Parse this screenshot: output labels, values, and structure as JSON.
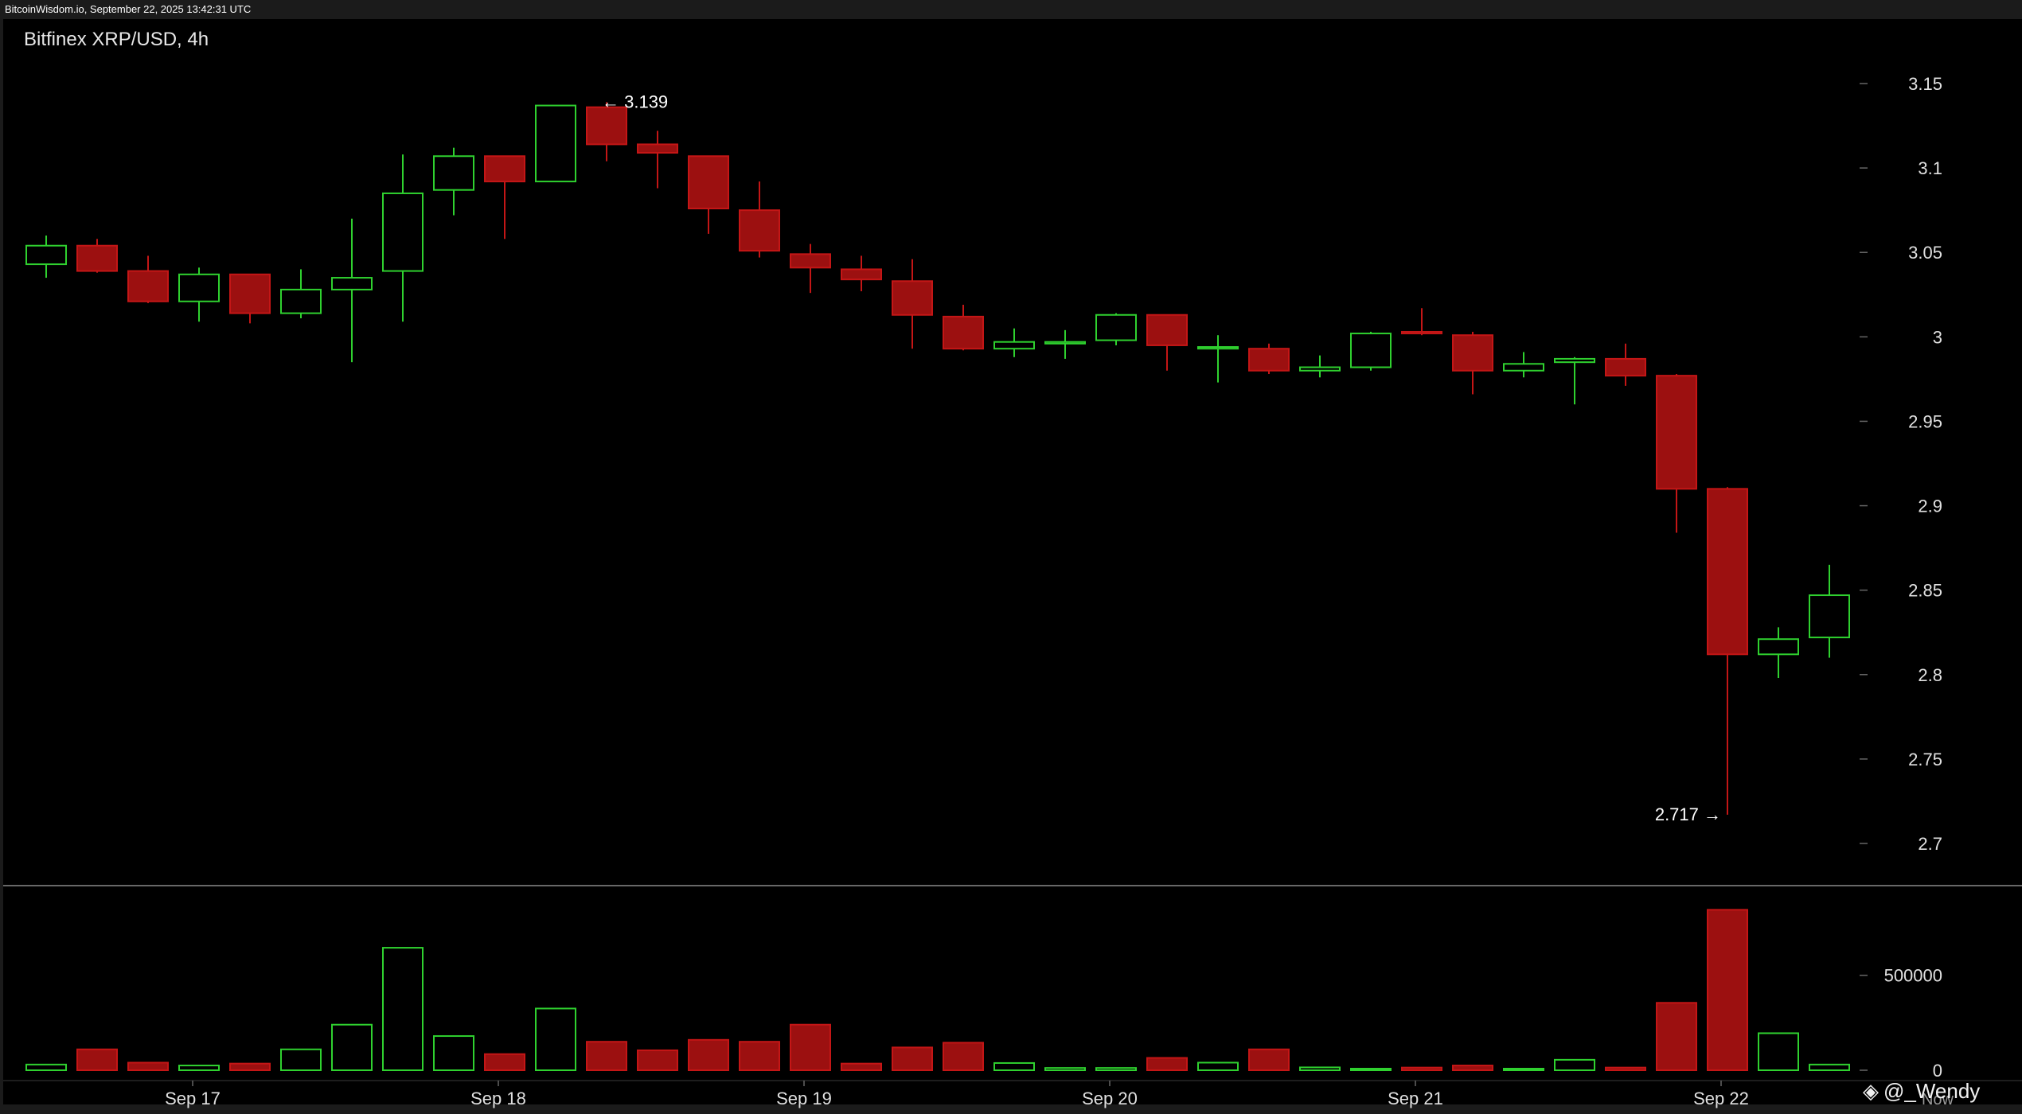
{
  "header": {
    "timestamp": "BitcoinWisdom.io, September 22, 2025 13:42:31 UTC"
  },
  "watermark": {
    "text": "@_Wendy",
    "icon": "binance-square-icon"
  },
  "colors": {
    "background": "#000000",
    "frame": "#1b1b1b",
    "up": "#2fd12f",
    "down": "#c41616",
    "down_fill": "#9c1010",
    "text": "#e0e0e0",
    "separator": "#8a8a8a"
  },
  "chart_data": {
    "type": "candlestick",
    "title": "Bitfinex XRP/USD, 4h",
    "exchange": "Bitfinex",
    "pair": "XRP/USD",
    "interval": "4h",
    "x_tick_labels": [
      {
        "label": "Sep 17",
        "index": 3
      },
      {
        "label": "Sep 18",
        "index": 9
      },
      {
        "label": "Sep 19",
        "index": 15
      },
      {
        "label": "Sep 20",
        "index": 21
      },
      {
        "label": "Sep 21",
        "index": 27
      },
      {
        "label": "Sep 22",
        "index": 33
      }
    ],
    "x_edge_label": "Now",
    "price_axis": {
      "ylim": [
        2.675,
        3.17
      ],
      "ticks": [
        2.7,
        2.75,
        2.8,
        2.85,
        2.9,
        2.95,
        3,
        3.05,
        3.1,
        3.15
      ],
      "tick_labels": [
        "2.7",
        "2.75",
        "2.8",
        "2.85",
        "2.9",
        "2.95",
        "3",
        "3.05",
        "3.1",
        "3.15"
      ]
    },
    "volume_axis": {
      "ylim": [
        0,
        880000
      ],
      "ticks": [
        0,
        500000
      ],
      "tick_labels": [
        "0",
        "500000"
      ]
    },
    "annotations": {
      "high": {
        "label": "← 3.139",
        "value": 3.139,
        "index": 11
      },
      "low": {
        "label": "2.717 →",
        "value": 2.717,
        "index": 33
      }
    },
    "candles": [
      {
        "o": 3.043,
        "h": 3.06,
        "l": 3.035,
        "c": 3.054,
        "v": 30000
      },
      {
        "o": 3.054,
        "h": 3.058,
        "l": 3.038,
        "c": 3.039,
        "v": 110000
      },
      {
        "o": 3.039,
        "h": 3.048,
        "l": 3.02,
        "c": 3.021,
        "v": 40000
      },
      {
        "o": 3.021,
        "h": 3.041,
        "l": 3.009,
        "c": 3.037,
        "v": 25000
      },
      {
        "o": 3.037,
        "h": 3.037,
        "l": 3.008,
        "c": 3.014,
        "v": 35000
      },
      {
        "o": 3.014,
        "h": 3.04,
        "l": 3.011,
        "c": 3.028,
        "v": 110000
      },
      {
        "o": 3.028,
        "h": 3.07,
        "l": 2.985,
        "c": 3.035,
        "v": 240000
      },
      {
        "o": 3.039,
        "h": 3.108,
        "l": 3.009,
        "c": 3.085,
        "v": 645000
      },
      {
        "o": 3.087,
        "h": 3.112,
        "l": 3.072,
        "c": 3.107,
        "v": 180000
      },
      {
        "o": 3.107,
        "h": 3.107,
        "l": 3.058,
        "c": 3.092,
        "v": 85000
      },
      {
        "o": 3.092,
        "h": 3.137,
        "l": 3.092,
        "c": 3.137,
        "v": 325000
      },
      {
        "o": 3.136,
        "h": 3.139,
        "l": 3.104,
        "c": 3.114,
        "v": 150000
      },
      {
        "o": 3.114,
        "h": 3.122,
        "l": 3.088,
        "c": 3.109,
        "v": 105000
      },
      {
        "o": 3.107,
        "h": 3.107,
        "l": 3.061,
        "c": 3.076,
        "v": 160000
      },
      {
        "o": 3.075,
        "h": 3.092,
        "l": 3.047,
        "c": 3.051,
        "v": 150000
      },
      {
        "o": 3.049,
        "h": 3.055,
        "l": 3.026,
        "c": 3.041,
        "v": 240000
      },
      {
        "o": 3.04,
        "h": 3.048,
        "l": 3.027,
        "c": 3.034,
        "v": 35000
      },
      {
        "o": 3.033,
        "h": 3.046,
        "l": 2.993,
        "c": 3.013,
        "v": 120000
      },
      {
        "o": 3.012,
        "h": 3.019,
        "l": 2.992,
        "c": 2.993,
        "v": 145000
      },
      {
        "o": 2.993,
        "h": 3.005,
        "l": 2.988,
        "c": 2.997,
        "v": 38000
      },
      {
        "o": 2.996,
        "h": 3.004,
        "l": 2.987,
        "c": 2.997,
        "v": 12000
      },
      {
        "o": 2.998,
        "h": 3.014,
        "l": 2.995,
        "c": 3.013,
        "v": 12000
      },
      {
        "o": 3.013,
        "h": 3.013,
        "l": 2.98,
        "c": 2.995,
        "v": 65000
      },
      {
        "o": 2.993,
        "h": 3.001,
        "l": 2.973,
        "c": 2.994,
        "v": 40000
      },
      {
        "o": 2.993,
        "h": 2.996,
        "l": 2.978,
        "c": 2.98,
        "v": 110000
      },
      {
        "o": 2.98,
        "h": 2.989,
        "l": 2.976,
        "c": 2.982,
        "v": 15000
      },
      {
        "o": 2.982,
        "h": 3.003,
        "l": 2.98,
        "c": 3.002,
        "v": 6000
      },
      {
        "o": 3.003,
        "h": 3.017,
        "l": 3.001,
        "c": 3.002,
        "v": 14000
      },
      {
        "o": 3.001,
        "h": 3.003,
        "l": 2.966,
        "c": 2.98,
        "v": 25000
      },
      {
        "o": 2.98,
        "h": 2.991,
        "l": 2.976,
        "c": 2.984,
        "v": 6000
      },
      {
        "o": 2.985,
        "h": 2.988,
        "l": 2.96,
        "c": 2.987,
        "v": 55000
      },
      {
        "o": 2.987,
        "h": 2.996,
        "l": 2.971,
        "c": 2.977,
        "v": 14000
      },
      {
        "o": 2.977,
        "h": 2.978,
        "l": 2.884,
        "c": 2.91,
        "v": 355000
      },
      {
        "o": 2.91,
        "h": 2.911,
        "l": 2.717,
        "c": 2.812,
        "v": 845000
      },
      {
        "o": 2.812,
        "h": 2.828,
        "l": 2.798,
        "c": 2.821,
        "v": 195000
      },
      {
        "o": 2.822,
        "h": 2.865,
        "l": 2.81,
        "c": 2.847,
        "v": 30000
      }
    ]
  }
}
